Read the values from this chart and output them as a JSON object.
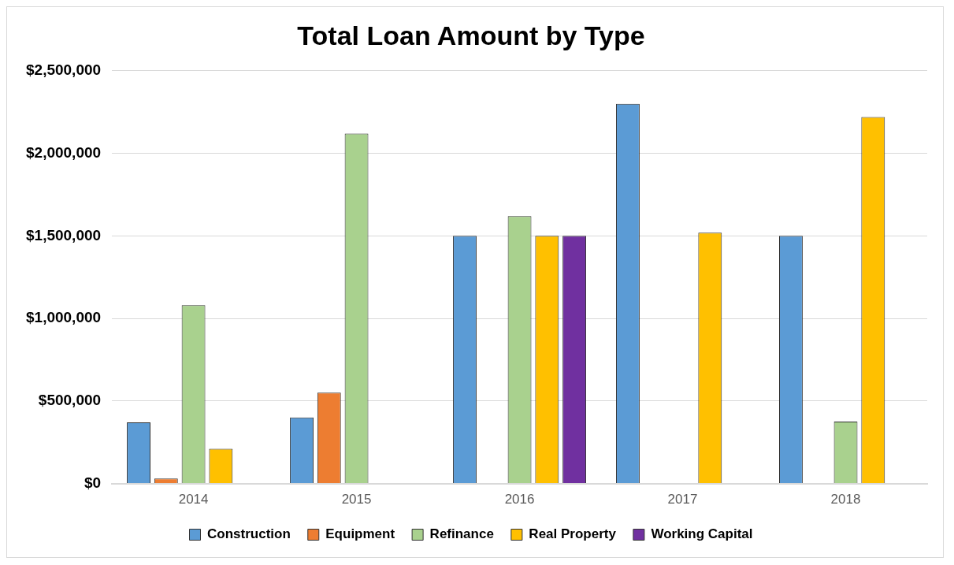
{
  "chart_data": {
    "type": "bar",
    "title": "Total Loan Amount by Type",
    "categories": [
      "2014",
      "2015",
      "2016",
      "2017",
      "2018"
    ],
    "series": [
      {
        "name": "Construction",
        "color": "#5b9bd5",
        "values": [
          370000,
          400000,
          1500000,
          2300000,
          1500000
        ]
      },
      {
        "name": "Equipment",
        "color": "#ed7d31",
        "values": [
          30000,
          550000,
          null,
          null,
          null
        ]
      },
      {
        "name": "Refinance",
        "color": "#a9d18e",
        "values": [
          1080000,
          2120000,
          1620000,
          null,
          375000
        ]
      },
      {
        "name": "Real Property",
        "color": "#ffc000",
        "values": [
          210000,
          null,
          1500000,
          1520000,
          2220000
        ]
      },
      {
        "name": "Working Capital",
        "color": "#7030a0",
        "values": [
          null,
          null,
          1500000,
          null,
          null
        ]
      }
    ],
    "ylim": [
      0,
      2500000
    ],
    "yticks": [
      {
        "value": 0,
        "label": "$0"
      },
      {
        "value": 500000,
        "label": "$500,000"
      },
      {
        "value": 1000000,
        "label": "$1,000,000"
      },
      {
        "value": 1500000,
        "label": "$1,500,000"
      },
      {
        "value": 2000000,
        "label": "$2,000,000"
      },
      {
        "value": 2500000,
        "label": "$2,500,000"
      }
    ],
    "grid": "y",
    "legend": "bottom"
  }
}
